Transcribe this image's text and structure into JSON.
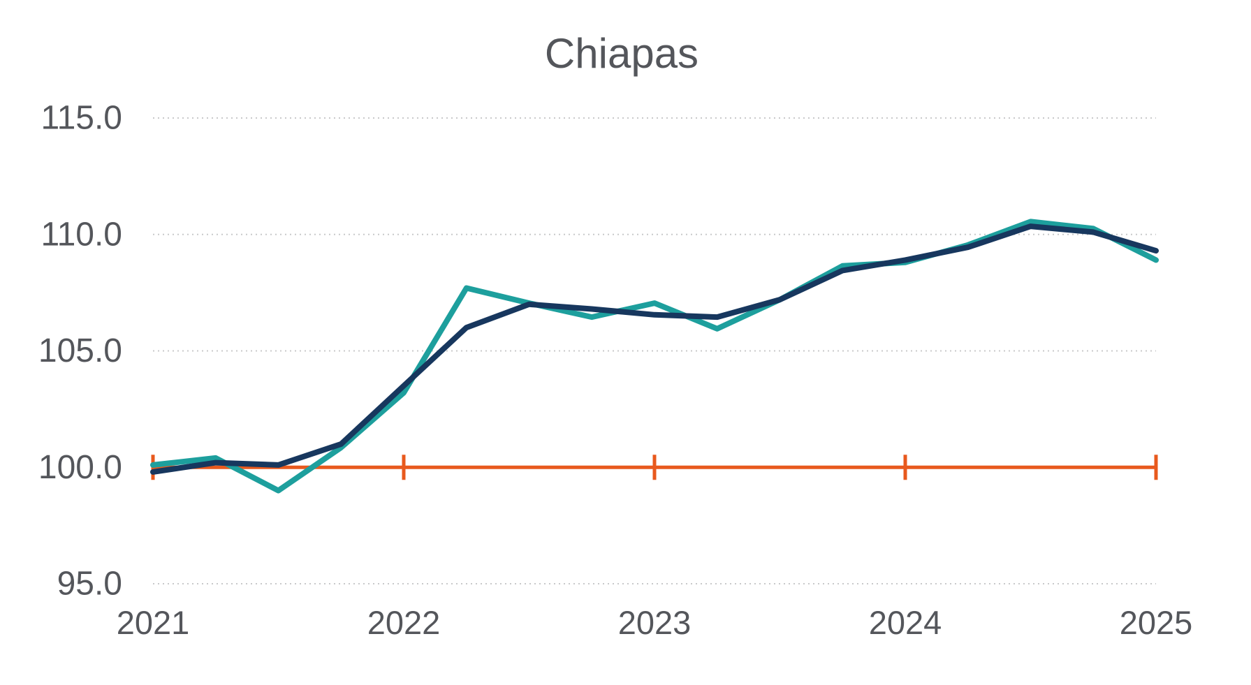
{
  "chart_data": {
    "type": "line",
    "title": "Chiapas",
    "xlabel": "",
    "ylabel": "",
    "x_unit": "quarterly points from 2021-Q1 to 2025-Q1",
    "x_tick_labels": [
      "2021",
      "2022",
      "2023",
      "2024",
      "2025"
    ],
    "x_tick_indices": [
      0,
      4,
      8,
      12,
      16
    ],
    "y_tick_labels": [
      "95.0",
      "100.0",
      "105.0",
      "110.0",
      "115.0"
    ],
    "y_tick_values": [
      95,
      100,
      105,
      110,
      115
    ],
    "ylim": [
      95,
      115
    ],
    "grid": "horizontal dotted",
    "legend": "none",
    "baseline": {
      "value": 100.0,
      "color": "#E8591D",
      "tick_indices": [
        0,
        4,
        8,
        12,
        16
      ]
    },
    "series": [
      {
        "name": "teal-line",
        "color": "#1D9F9D",
        "values": [
          100.1,
          100.4,
          99.0,
          100.85,
          103.2,
          107.7,
          107.05,
          106.45,
          107.05,
          105.95,
          107.2,
          108.65,
          108.8,
          109.55,
          110.55,
          110.25,
          108.9
        ]
      },
      {
        "name": "navy-line",
        "color": "#17375E",
        "values": [
          99.8,
          100.2,
          100.1,
          101.0,
          103.5,
          106.0,
          107.0,
          106.8,
          106.55,
          106.45,
          107.2,
          108.45,
          108.9,
          109.45,
          110.35,
          110.1,
          109.3
        ]
      }
    ],
    "colors": {
      "title_text": "#54565B",
      "axis_text": "#54565B",
      "gridline": "#C8C9CA",
      "background": "#FFFFFF"
    }
  }
}
